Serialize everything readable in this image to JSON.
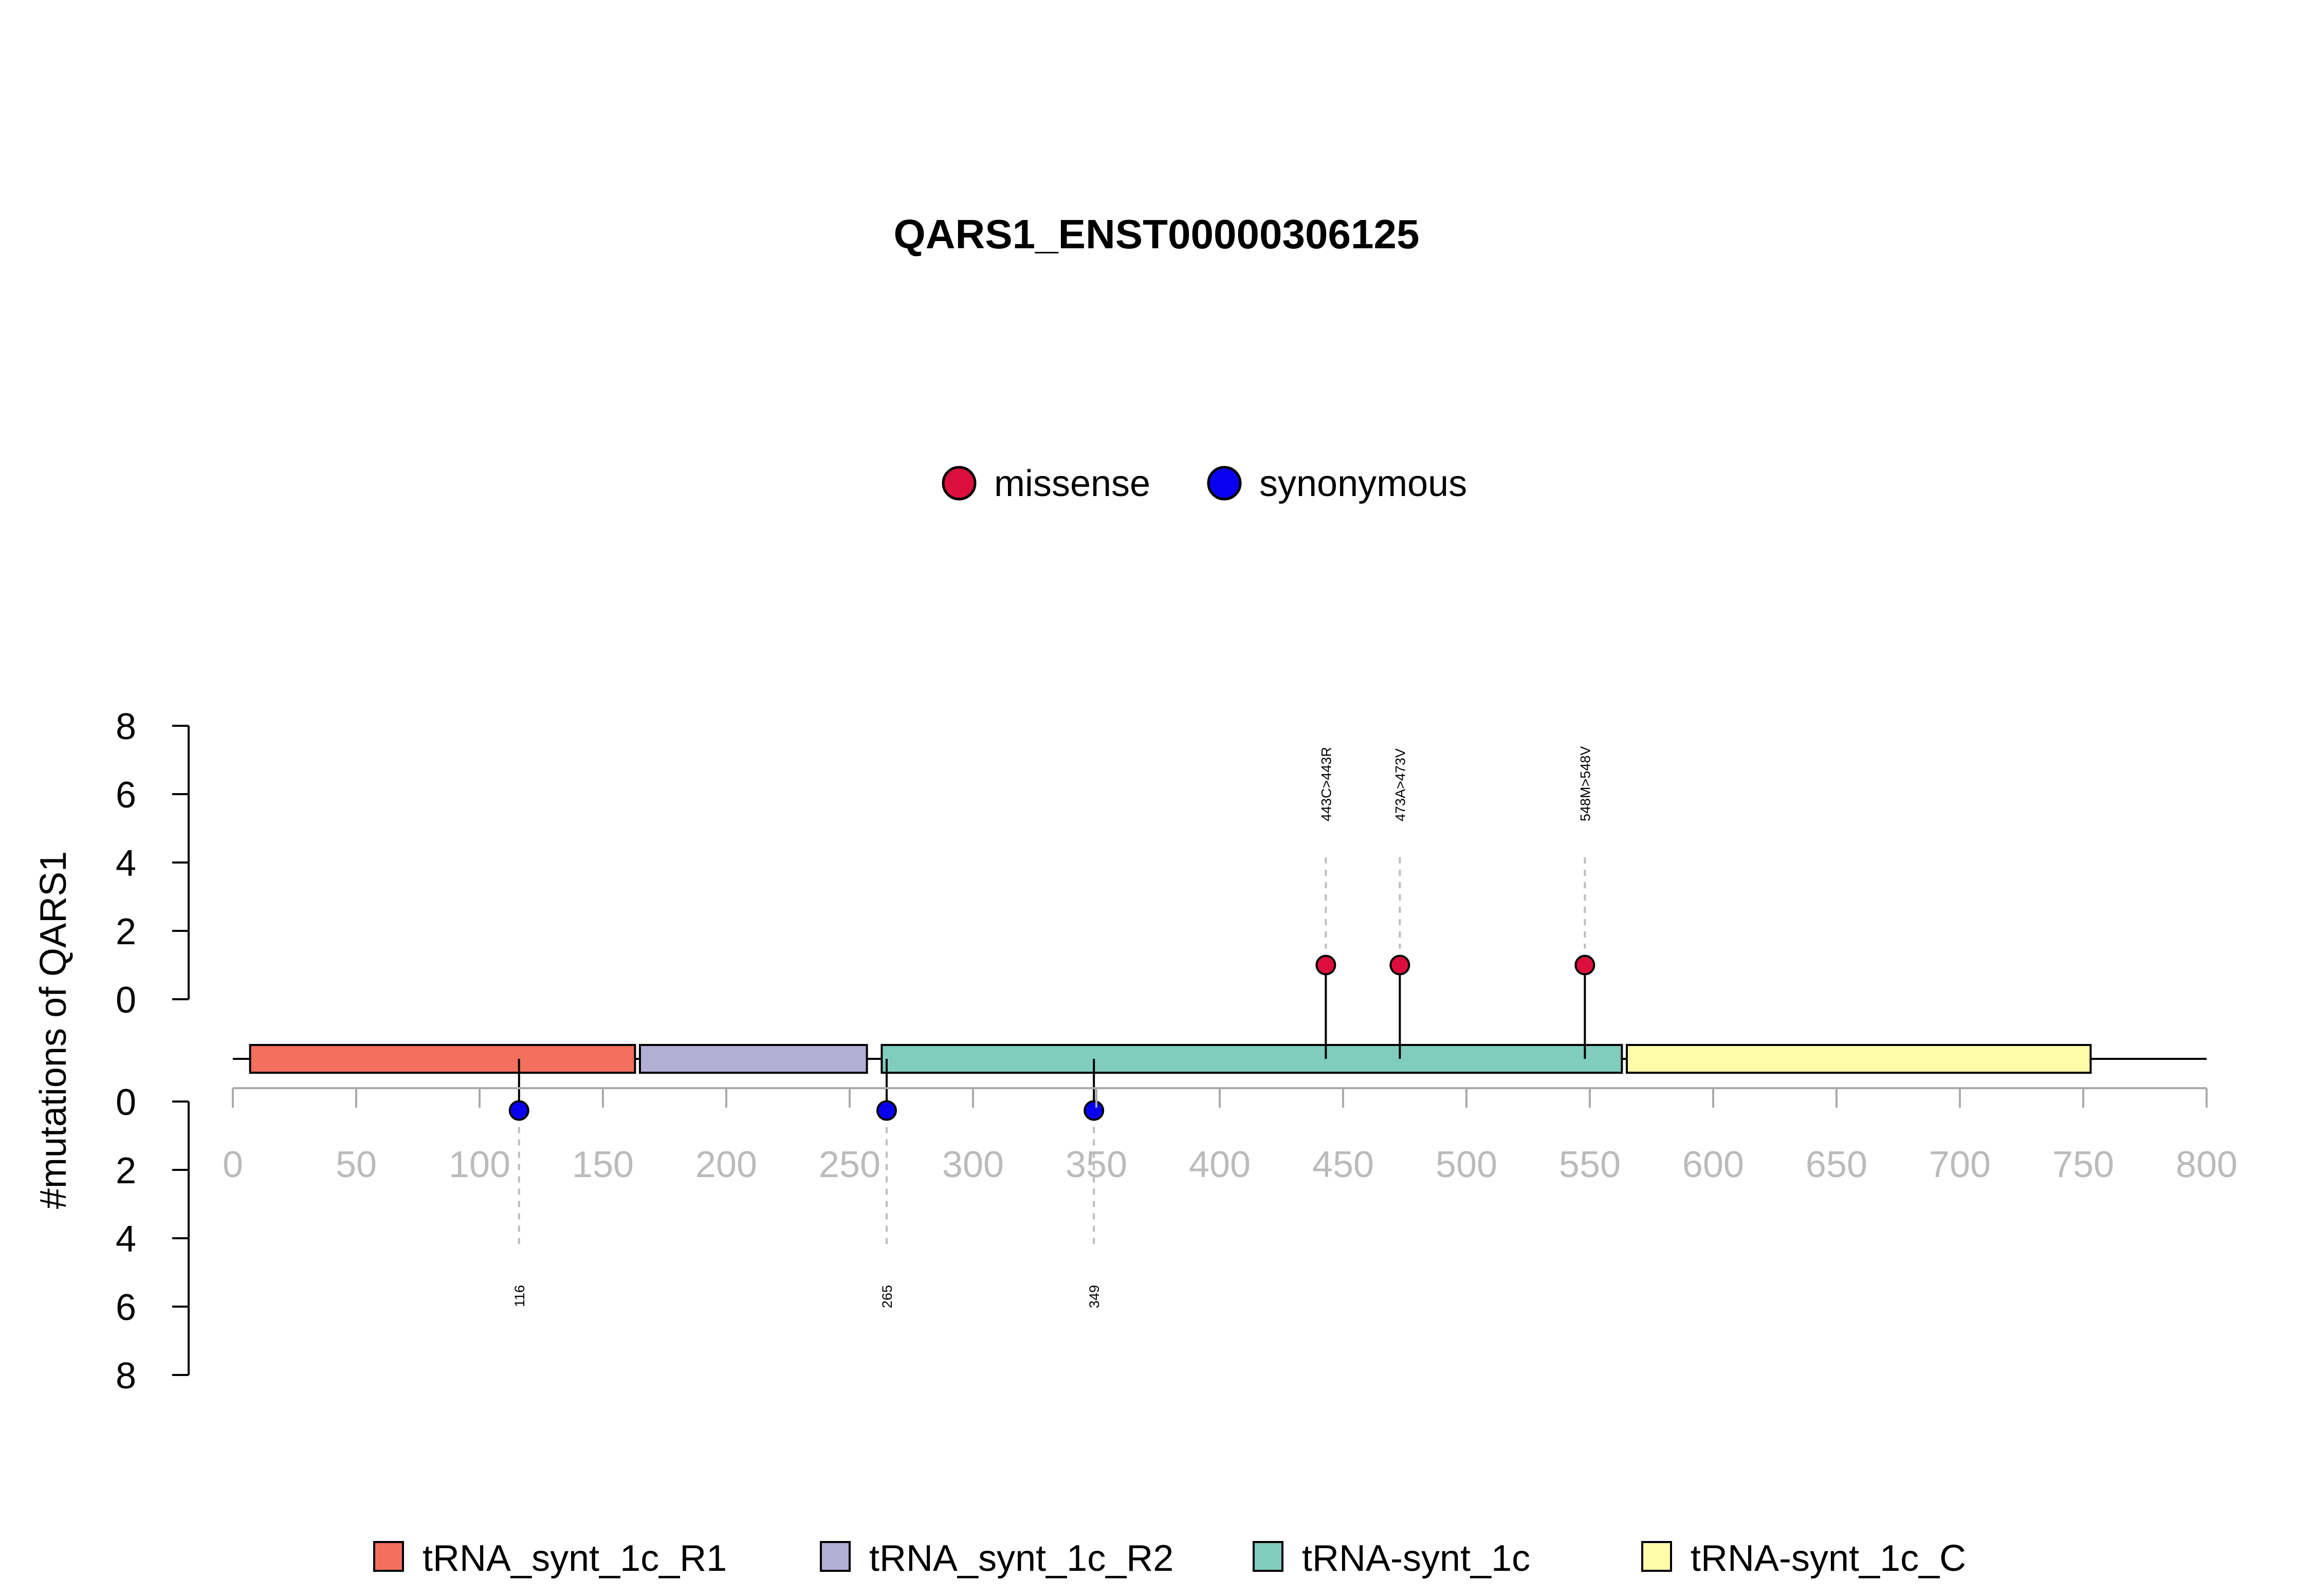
{
  "chart_data": {
    "type": "lollipop",
    "title": "QARS1_ENST00000306125",
    "ylabel": "#mutations of QARS1",
    "x_ticks": [
      0,
      50,
      100,
      150,
      200,
      250,
      300,
      350,
      400,
      450,
      500,
      550,
      600,
      650,
      700,
      750,
      800
    ],
    "xlim": [
      0,
      800
    ],
    "y_ticks_top": [
      0,
      2,
      4,
      6,
      8
    ],
    "y_ticks_bottom": [
      0,
      2,
      4,
      6,
      8
    ],
    "ylim": [
      0,
      8
    ],
    "mutation_legend": [
      {
        "name": "missense",
        "color": "#DC0F3C"
      },
      {
        "name": "synonymous",
        "color": "#0A00F0"
      }
    ],
    "domains": [
      {
        "name": "tRNA_synt_1c_R1",
        "start": 7,
        "end": 163,
        "color": "#F46F5E"
      },
      {
        "name": "tRNA_synt_1c_R2",
        "start": 165,
        "end": 257,
        "color": "#B3AED4"
      },
      {
        "name": "tRNA-synt_1c",
        "start": 263,
        "end": 563,
        "color": "#80CDBD"
      },
      {
        "name": "tRNA-synt_1c_C",
        "start": 565,
        "end": 753,
        "color": "#FEFCA9"
      }
    ],
    "mutations_top": [
      {
        "position": 443,
        "count": 1,
        "type": "missense",
        "label": "443C>443R"
      },
      {
        "position": 473,
        "count": 1,
        "type": "missense",
        "label": "473A>473V"
      },
      {
        "position": 548,
        "count": 1,
        "type": "missense",
        "label": "548M>548V"
      }
    ],
    "mutations_bottom": [
      {
        "position": 116,
        "count": 1,
        "type": "synonymous",
        "label": "116"
      },
      {
        "position": 265,
        "count": 1,
        "type": "synonymous",
        "label": "265"
      },
      {
        "position": 349,
        "count": 1,
        "type": "synonymous",
        "label": "349"
      }
    ],
    "colors": {
      "axis_gray": "#AAAAAA",
      "tick_label_gray": "#BBBBBB",
      "guide_gray": "#BDBDBD"
    }
  }
}
